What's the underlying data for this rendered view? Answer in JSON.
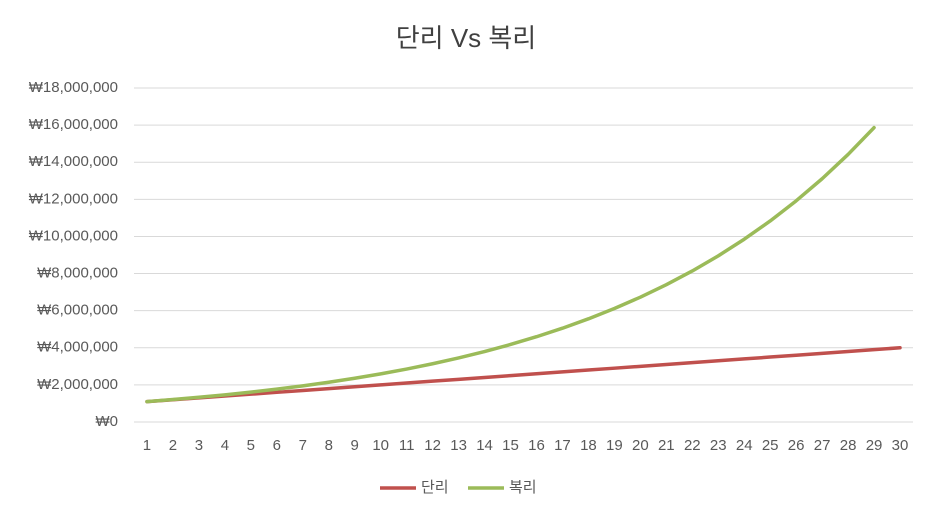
{
  "chart_data": {
    "type": "line",
    "title": "단리 Vs 복리",
    "categories": [
      "1",
      "2",
      "3",
      "4",
      "5",
      "6",
      "7",
      "8",
      "9",
      "10",
      "11",
      "12",
      "13",
      "14",
      "15",
      "16",
      "17",
      "18",
      "19",
      "20",
      "21",
      "22",
      "23",
      "24",
      "25",
      "26",
      "27",
      "28",
      "29",
      "30"
    ],
    "series": [
      {
        "name": "단리",
        "color": "#c0504d",
        "values": [
          1100000,
          1200000,
          1300000,
          1400000,
          1500000,
          1600000,
          1700000,
          1800000,
          1900000,
          2000000,
          2100000,
          2200000,
          2300000,
          2400000,
          2500000,
          2600000,
          2700000,
          2800000,
          2900000,
          3000000,
          3100000,
          3200000,
          3300000,
          3400000,
          3500000,
          3600000,
          3700000,
          3800000,
          3900000,
          4000000
        ]
      },
      {
        "name": "복리",
        "color": "#9bbb59",
        "values": [
          1100000,
          1210000,
          1331000,
          1464100,
          1610510,
          1771561,
          1948717,
          2143589,
          2357948,
          2593742,
          2853117,
          3138428,
          3452271,
          3797498,
          4177248,
          4594973,
          5054470,
          5559917,
          6115909,
          6727500,
          7400250,
          8140275,
          8954302,
          9849733,
          10834706,
          11918177,
          13109994,
          14420994,
          15863093,
          null
        ]
      }
    ],
    "ylim": [
      0,
      18000000
    ],
    "yticks": [
      {
        "value": 0,
        "label": "₩0"
      },
      {
        "value": 2000000,
        "label": "₩2,000,000"
      },
      {
        "value": 4000000,
        "label": "₩4,000,000"
      },
      {
        "value": 6000000,
        "label": "₩6,000,000"
      },
      {
        "value": 8000000,
        "label": "₩8,000,000"
      },
      {
        "value": 10000000,
        "label": "₩10,000,000"
      },
      {
        "value": 12000000,
        "label": "₩12,000,000"
      },
      {
        "value": 14000000,
        "label": "₩14,000,000"
      },
      {
        "value": 16000000,
        "label": "₩16,000,000"
      },
      {
        "value": 18000000,
        "label": "₩18,000,000"
      }
    ],
    "grid": true,
    "legend": "bottom"
  }
}
